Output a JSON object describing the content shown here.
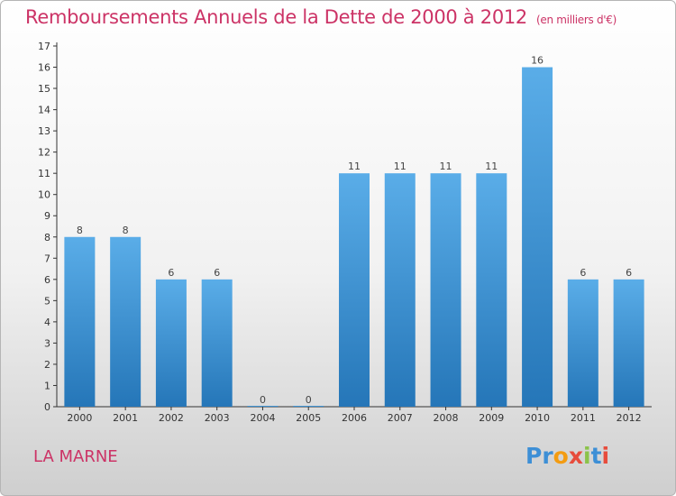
{
  "header": {
    "title": "Remboursements Annuels de la Dette de 2000 à 2012",
    "unit": "(en milliers d'€)"
  },
  "footer": {
    "commune": "LA MARNE",
    "logo_letters": [
      "P",
      "r",
      "o",
      "x",
      "i",
      "t",
      "i"
    ]
  },
  "colors": {
    "title": "#cc3366",
    "bar_top": "#5aade8",
    "bar_bottom": "#2576b8",
    "axis": "#333333"
  },
  "chart_data": {
    "type": "bar",
    "categories": [
      "2000",
      "2001",
      "2002",
      "2003",
      "2004",
      "2005",
      "2006",
      "2007",
      "2008",
      "2009",
      "2010",
      "2011",
      "2012"
    ],
    "values": [
      8,
      8,
      6,
      6,
      0,
      0,
      11,
      11,
      11,
      11,
      16,
      6,
      6
    ],
    "title": "Remboursements Annuels de la Dette de 2000 à 2012",
    "xlabel": "",
    "ylabel": "",
    "ylim": [
      0,
      17
    ],
    "yticks": [
      0,
      1,
      2,
      3,
      4,
      5,
      6,
      7,
      8,
      9,
      10,
      11,
      12,
      13,
      14,
      15,
      16,
      17
    ],
    "grid": false,
    "data_labels": true
  }
}
